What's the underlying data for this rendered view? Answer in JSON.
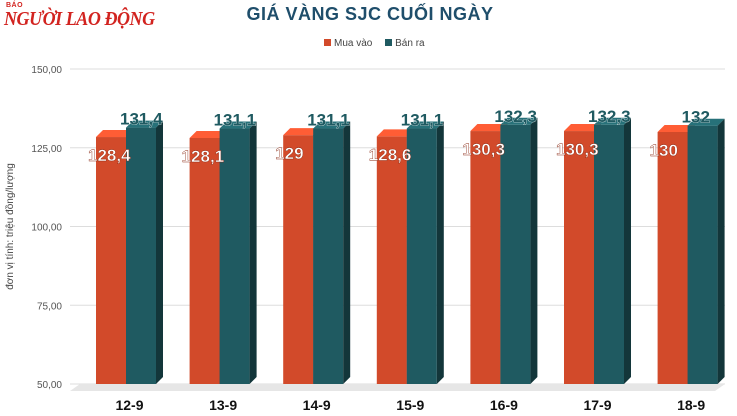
{
  "logo": {
    "small": "BÁO",
    "main": "NGƯỜI LAO ĐỘNG"
  },
  "chart_data": {
    "type": "bar",
    "title": "GIÁ VÀNG SJC CUỐI NGÀY",
    "ylabel": "đơn vị tính: triệu đồng/lượng",
    "xlabel": "",
    "categories": [
      "12-9",
      "13-9",
      "14-9",
      "15-9",
      "16-9",
      "17-9",
      "18-9"
    ],
    "series": [
      {
        "name": "Mua vào",
        "color": "#d24a2a",
        "values": [
          128.4,
          128.1,
          129,
          128.6,
          130.3,
          130.3,
          130
        ],
        "labels": [
          "128,4",
          "128,1",
          "129",
          "128,6",
          "130,3",
          "130,3",
          "130"
        ]
      },
      {
        "name": "Bán ra",
        "color": "#1f5a61",
        "values": [
          131.4,
          131.1,
          131.1,
          131.1,
          132.3,
          132.3,
          132
        ],
        "labels": [
          "131,4",
          "131,1",
          "131,1",
          "131,1",
          "132,3",
          "132,3",
          "132"
        ]
      }
    ],
    "yticks": [
      50,
      75,
      100,
      125,
      150
    ],
    "ytick_labels": [
      "50,00",
      "75,00",
      "100,00",
      "125,00",
      "150,00"
    ],
    "ylim": [
      50,
      150
    ],
    "grid": true,
    "legend": "top-center"
  }
}
